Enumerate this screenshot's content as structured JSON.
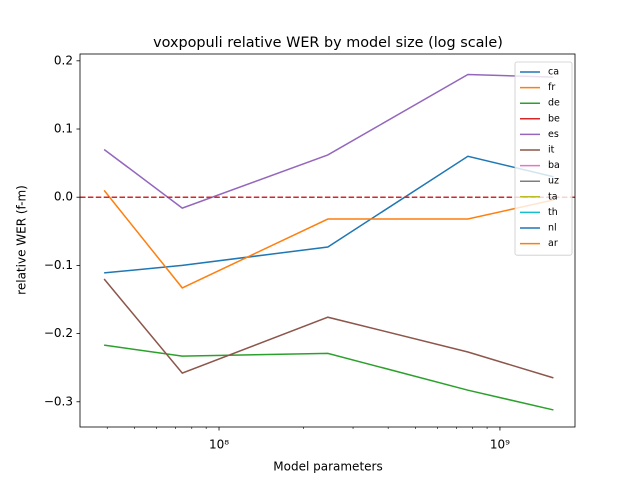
{
  "chart_data": {
    "type": "line",
    "title": "voxpopuli relative WER by model size (log scale)",
    "xlabel": "Model parameters",
    "ylabel": "relative WER (f-m)",
    "x": [
      39000000,
      74000000,
      244000000,
      769000000,
      1550000000
    ],
    "xscale": "log",
    "xlim": [
      32000000,
      1850000000
    ],
    "xticks": [
      {
        "value": 100000000,
        "label": "10⁸"
      },
      {
        "value": 1000000000,
        "label": "10⁹"
      }
    ],
    "xminorticks": [
      40000000,
      50000000,
      60000000,
      70000000,
      80000000,
      90000000,
      200000000,
      300000000,
      400000000,
      500000000,
      600000000,
      700000000,
      800000000,
      900000000
    ],
    "ylim": [
      -0.337,
      0.21
    ],
    "yticks": [
      {
        "value": -0.3,
        "label": "−0.3"
      },
      {
        "value": -0.2,
        "label": "−0.2"
      },
      {
        "value": -0.1,
        "label": "−0.1"
      },
      {
        "value": 0,
        "label": "0.0"
      },
      0.1,
      0.2
    ],
    "reference_line": {
      "value": 0,
      "color": "#d62728",
      "style": "dashed"
    },
    "legend": "upper right",
    "series": [
      {
        "name": "ca",
        "color": "#1f77b4",
        "values": [
          -0.111,
          -0.1,
          -0.073,
          0.06,
          0.03
        ]
      },
      {
        "name": "fr",
        "color": "#ff7f0e",
        "values": [
          0.01,
          -0.133,
          -0.032,
          -0.032,
          -0.004
        ]
      },
      {
        "name": "de",
        "color": "#2ca02c",
        "values": [
          -0.217,
          -0.233,
          -0.229,
          -0.283,
          -0.312
        ]
      },
      {
        "name": "be",
        "color": "#d62728",
        "values": [
          null,
          null,
          null,
          null,
          null
        ]
      },
      {
        "name": "es",
        "color": "#9467bd",
        "values": [
          0.07,
          -0.016,
          0.062,
          0.18,
          0.176
        ]
      },
      {
        "name": "it",
        "color": "#8c564b",
        "values": [
          -0.12,
          -0.258,
          -0.176,
          -0.227,
          -0.265
        ]
      },
      {
        "name": "ba",
        "color": "#e377c2",
        "values": [
          null,
          null,
          null,
          null,
          null
        ]
      },
      {
        "name": "uz",
        "color": "#7f7f7f",
        "values": [
          null,
          null,
          null,
          null,
          null
        ]
      },
      {
        "name": "ta",
        "color": "#bcbd22",
        "values": [
          null,
          null,
          null,
          null,
          null
        ]
      },
      {
        "name": "th",
        "color": "#17becf",
        "values": [
          null,
          null,
          null,
          null,
          null
        ]
      },
      {
        "name": "nl",
        "color": "#1f77b4",
        "values": [
          null,
          null,
          null,
          null,
          null
        ]
      },
      {
        "name": "ar",
        "color": "#ff7f0e",
        "values": [
          null,
          null,
          null,
          null,
          null
        ]
      }
    ]
  }
}
